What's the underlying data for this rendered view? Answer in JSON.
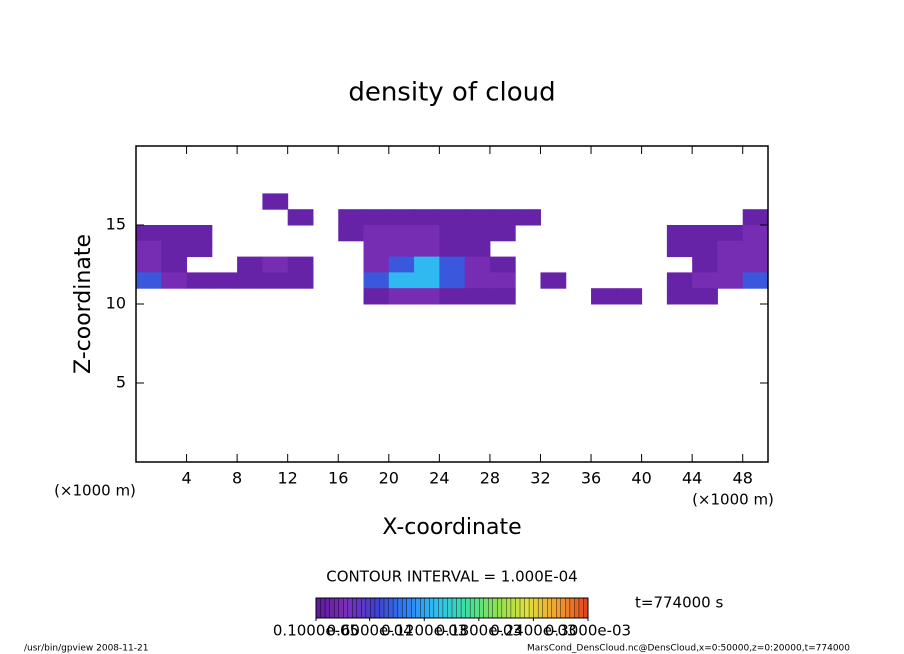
{
  "chart_data": {
    "type": "heatmap",
    "title": "density of cloud",
    "x_label": "X-coordinate",
    "y_label": "Z-coordinate",
    "x_unit": "(×1000 m)",
    "y_unit": "(×1000 m)",
    "xlim": [
      0,
      50
    ],
    "ylim": [
      0,
      20
    ],
    "xticks": [
      4,
      8,
      12,
      16,
      20,
      24,
      28,
      32,
      36,
      40,
      44,
      48
    ],
    "yticks": [
      5,
      10,
      15
    ],
    "x": [
      1,
      3,
      5,
      7,
      9,
      11,
      13,
      15,
      17,
      19,
      21,
      23,
      25,
      27,
      29,
      31,
      33,
      35,
      37,
      39,
      41,
      43,
      45,
      47,
      49
    ],
    "y": [
      16.5,
      15.5,
      14.5,
      13.5,
      12.5,
      11.5,
      10.5
    ],
    "z": [
      [
        null,
        null,
        null,
        null,
        null,
        1.5e-05,
        null,
        null,
        null,
        null,
        null,
        null,
        null,
        null,
        null,
        null,
        null,
        null,
        null,
        null,
        null,
        null,
        null,
        null,
        null
      ],
      [
        null,
        null,
        null,
        null,
        null,
        null,
        1.5e-05,
        null,
        1.5e-05,
        1.5e-05,
        1.5e-05,
        1.5e-05,
        1.5e-05,
        1.5e-05,
        1.5e-05,
        1.5e-05,
        null,
        null,
        null,
        null,
        null,
        null,
        null,
        null,
        1.5e-05
      ],
      [
        1.5e-05,
        1.5e-05,
        1.5e-05,
        null,
        null,
        null,
        null,
        null,
        1.5e-05,
        3e-05,
        3e-05,
        3e-05,
        1.5e-05,
        1.5e-05,
        1.5e-05,
        null,
        null,
        null,
        null,
        null,
        null,
        1.5e-05,
        1.5e-05,
        1.5e-05,
        3e-05
      ],
      [
        3e-05,
        1.5e-05,
        1.5e-05,
        null,
        null,
        null,
        null,
        null,
        null,
        3e-05,
        3e-05,
        3e-05,
        1.5e-05,
        1.5e-05,
        null,
        null,
        null,
        null,
        null,
        null,
        null,
        1.5e-05,
        1.5e-05,
        3e-05,
        3e-05
      ],
      [
        3e-05,
        1.5e-05,
        null,
        null,
        1.5e-05,
        3e-05,
        1.5e-05,
        null,
        null,
        3e-05,
        8e-05,
        0.00013,
        8e-05,
        3e-05,
        1.5e-05,
        null,
        null,
        null,
        null,
        null,
        null,
        null,
        1.5e-05,
        3e-05,
        3e-05
      ],
      [
        8e-05,
        3e-05,
        1.5e-05,
        1.5e-05,
        1.5e-05,
        1.5e-05,
        1.5e-05,
        null,
        null,
        8e-05,
        0.00013,
        0.00013,
        8e-05,
        3e-05,
        3e-05,
        null,
        1.5e-05,
        null,
        null,
        null,
        null,
        1.5e-05,
        3e-05,
        3e-05,
        8e-05
      ],
      [
        null,
        null,
        null,
        null,
        null,
        null,
        null,
        null,
        null,
        1.5e-05,
        3e-05,
        3e-05,
        1.5e-05,
        1.5e-05,
        1.5e-05,
        null,
        null,
        null,
        1.5e-05,
        1.5e-05,
        null,
        1.5e-05,
        1.5e-05,
        null,
        null
      ]
    ],
    "clim": [
      1e-06,
      0.0003
    ],
    "colormap": [
      "#5a1a9a",
      "#7a30b8",
      "#4040d0",
      "#3080f0",
      "#30c0f0",
      "#40e0a0",
      "#90e050",
      "#e0e040",
      "#f0a030",
      "#e04020"
    ],
    "colorbar_ticks": [
      {
        "value": 1e-06,
        "label": "0.1000e-05"
      },
      {
        "value": 6e-05,
        "label": "0.6000e-04"
      },
      {
        "value": 0.00012,
        "label": "0.1200e-03"
      },
      {
        "value": 0.00018,
        "label": "0.1800e-03"
      },
      {
        "value": 0.00024,
        "label": "0.2400e-03"
      },
      {
        "value": 0.0003,
        "label": "0.3000e-03"
      }
    ],
    "contour_note": "CONTOUR INTERVAL = 1.000E-04",
    "time_label": "t=774000 s",
    "footer_left": "/usr/bin/gpview  2008-11-21",
    "footer_right": "MarsCond_DensCloud.nc@DensCloud,x=0:50000,z=0:20000,t=774000"
  }
}
